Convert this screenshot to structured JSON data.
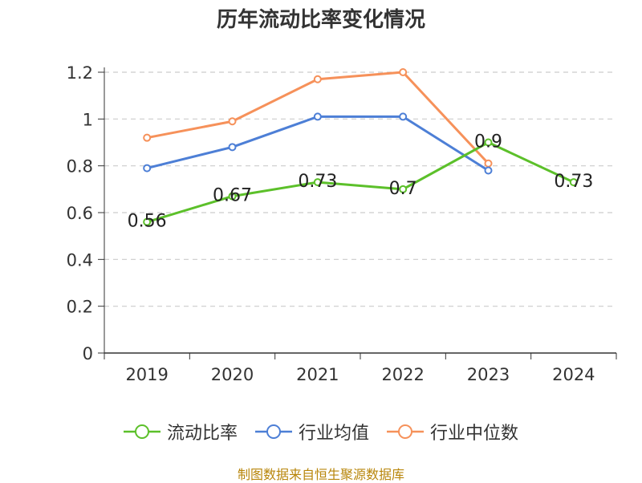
{
  "chart_data": {
    "type": "line",
    "title": "历年流动比率变化情况",
    "categories": [
      "2019",
      "2020",
      "2021",
      "2022",
      "2023",
      "2024"
    ],
    "ylim": [
      0,
      1.2
    ],
    "yticks": [
      0,
      0.2,
      0.4,
      0.6,
      0.8,
      1,
      1.2
    ],
    "ytick_labels": [
      "0",
      "0.2",
      "0.4",
      "0.6",
      "0.8",
      "1",
      "1.2"
    ],
    "grid": true,
    "legend_position": "bottom",
    "series": [
      {
        "name": "流动比率",
        "color": "#5cc02a",
        "values": [
          0.56,
          0.67,
          0.73,
          0.7,
          0.9,
          0.73
        ],
        "labels": [
          "0.56",
          "0.67",
          "0.73",
          "0.7",
          "0.9",
          "0.73"
        ]
      },
      {
        "name": "行业均值",
        "color": "#4d7fd6",
        "values": [
          0.79,
          0.88,
          1.01,
          1.01,
          0.78,
          null
        ]
      },
      {
        "name": "行业中位数",
        "color": "#f6915a",
        "values": [
          0.92,
          0.99,
          1.17,
          1.2,
          0.81,
          null
        ]
      }
    ]
  },
  "source": "制图数据来自恒生聚源数据库"
}
